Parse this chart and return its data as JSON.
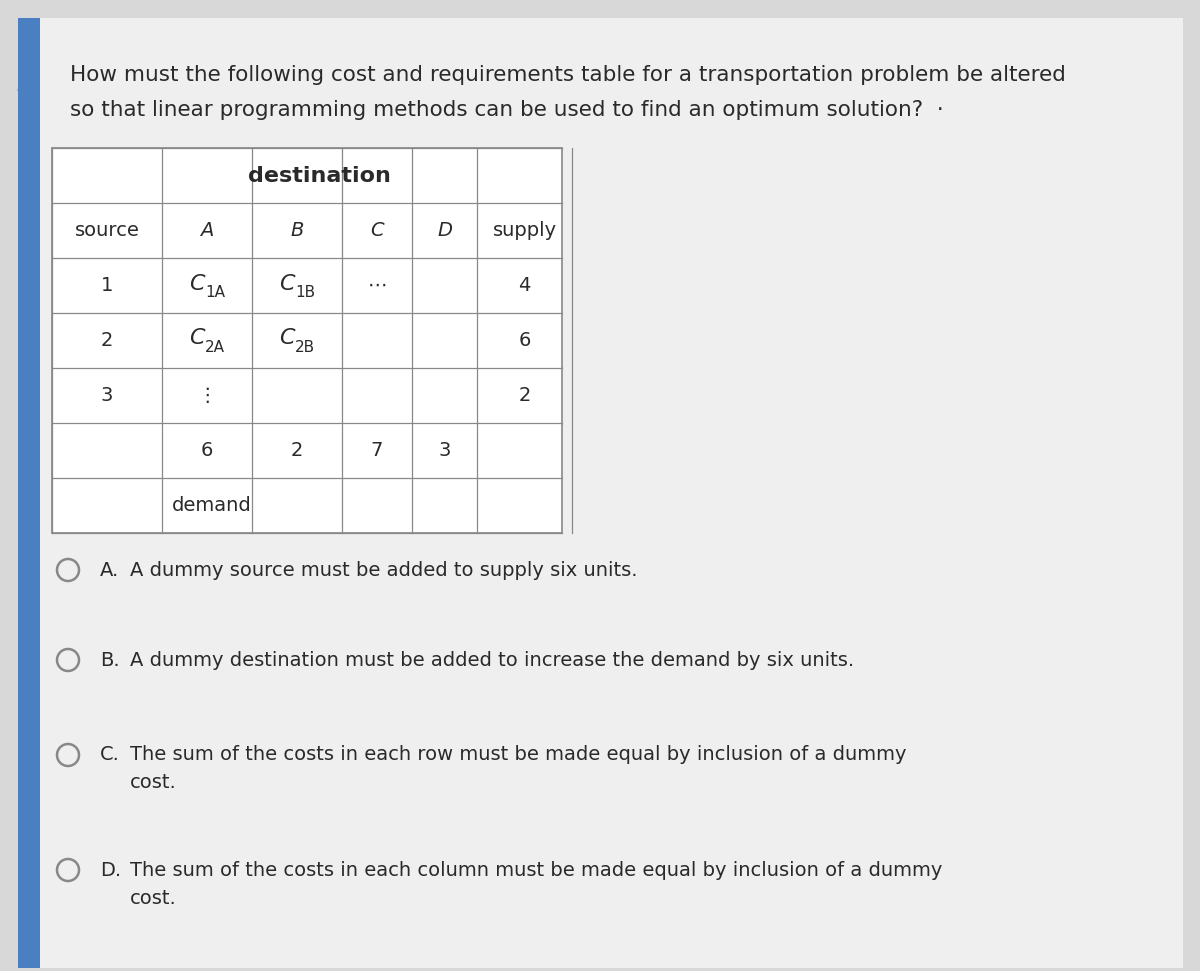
{
  "question_line1": "How must the following cost and requirements table for a transportation problem be altered",
  "question_line2": "so that linear programming methods can be used to find an optimum solution?  ·",
  "bg_color": "#d8d8d8",
  "content_bg": "#efefef",
  "table_bg": "#ffffff",
  "blue_strip_color": "#4a7fc1",
  "col_headers": [
    "source",
    "A",
    "B",
    "C",
    "D",
    "supply"
  ],
  "dest_label": "destination",
  "rows": [
    [
      "1",
      "C_1A",
      "C_1B",
      "⋯",
      "",
      "4"
    ],
    [
      "2",
      "C_2A",
      "C_2B",
      "",
      "",
      "6"
    ],
    [
      "3",
      "⋮",
      "",
      "",
      "",
      "2"
    ],
    [
      "",
      "6",
      "2",
      "7",
      "3",
      ""
    ],
    [
      "",
      "demand",
      "",
      "",
      "",
      ""
    ]
  ],
  "options": [
    {
      "circle": true,
      "pre": "A.",
      "text": "A dummy source must be added to supply six units.",
      "line2": ""
    },
    {
      "circle": true,
      "pre": "B.",
      "text": "A dummy destination must be added to increase the demand by six units.",
      "line2": ""
    },
    {
      "circle": true,
      "pre": "C.",
      "text": "The sum of the costs in each row must be made equal by inclusion of a dummy",
      "line2": "cost."
    },
    {
      "circle": true,
      "pre": "D.",
      "text": "The sum of the costs in each column must be made equal by inclusion of a dummy",
      "line2": "cost."
    }
  ],
  "font_size_q": 15.5,
  "font_size_table": 14,
  "font_size_opt": 14,
  "text_color": "#2a2a2a",
  "border_color": "#888888",
  "table_header_color": "#444444"
}
